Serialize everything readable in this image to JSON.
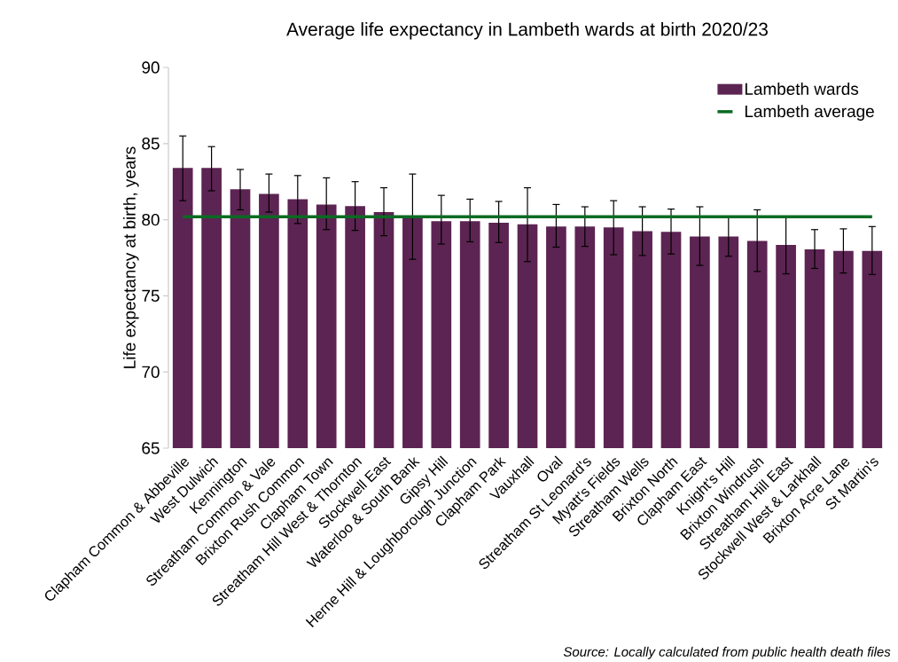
{
  "chart_data": {
    "type": "bar",
    "title": "Average life expectancy in Lambeth wards at birth 2020/23",
    "ylabel": "Life expectancy at birth, years",
    "categories": [
      "Clapham Common & Abbeville",
      "West Dulwich",
      "Kennington",
      "Streatham Common & Vale",
      "Brixton Rush Common",
      "Clapham Town",
      "Streatham Hill West & Thornton",
      "Stockwell East",
      "Waterloo & South Bank",
      "Gipsy Hill",
      "Herne Hill & Loughborough Junction",
      "Clapham Park",
      "Vauxhall",
      "Oval",
      "Streatham St Leonard's",
      "Myatt's Fields",
      "Streatham Wells",
      "Brixton North",
      "Clapham East",
      "Knight's Hill",
      "Brixton Windrush",
      "Streatham Hill East",
      "Stockwell West & Larkhall",
      "Brixton Acre Lane",
      "St Martin's"
    ],
    "series": [
      {
        "name": "Lambeth wards",
        "color": "#5c2452",
        "values": [
          83.4,
          83.4,
          82.0,
          81.7,
          81.35,
          81.0,
          80.9,
          80.5,
          80.2,
          79.9,
          79.9,
          79.8,
          79.7,
          79.55,
          79.55,
          79.5,
          79.25,
          79.2,
          78.9,
          78.9,
          78.6,
          78.35,
          78.05,
          77.95,
          77.95
        ],
        "errors": [
          [
            81.25,
            85.5
          ],
          [
            81.9,
            84.8
          ],
          [
            80.65,
            83.3
          ],
          [
            80.5,
            83.0
          ],
          [
            79.75,
            82.9
          ],
          [
            79.35,
            82.75
          ],
          [
            79.3,
            82.5
          ],
          [
            78.95,
            82.1
          ],
          [
            77.4,
            83.0
          ],
          [
            78.4,
            81.6
          ],
          [
            78.55,
            81.35
          ],
          [
            78.5,
            81.2
          ],
          [
            77.25,
            82.1
          ],
          [
            78.2,
            81.0
          ],
          [
            78.25,
            80.85
          ],
          [
            77.7,
            81.25
          ],
          [
            77.65,
            80.85
          ],
          [
            77.75,
            80.7
          ],
          [
            77.0,
            80.85
          ],
          [
            77.6,
            80.2
          ],
          [
            76.6,
            80.65
          ],
          [
            76.45,
            80.2
          ],
          [
            76.8,
            79.35
          ],
          [
            76.5,
            79.4
          ],
          [
            76.4,
            79.55
          ]
        ]
      },
      {
        "name": "Lambeth average",
        "type": "line",
        "color": "#0a6b23",
        "values": [
          80.2,
          80.2,
          80.2,
          80.2,
          80.2,
          80.2,
          80.2,
          80.2,
          80.2,
          80.2,
          80.2,
          80.2,
          80.2,
          80.2,
          80.2,
          80.2,
          80.2,
          80.2,
          80.2,
          80.2,
          80.2,
          80.2,
          80.2,
          80.2,
          80.2
        ]
      }
    ],
    "ylim": [
      65,
      90
    ],
    "yticks": [
      65,
      70,
      75,
      80,
      85,
      90
    ],
    "legend": "top right",
    "marker": "none",
    "annotations": [
      "Source: Locally calculated from public health death files"
    ]
  }
}
